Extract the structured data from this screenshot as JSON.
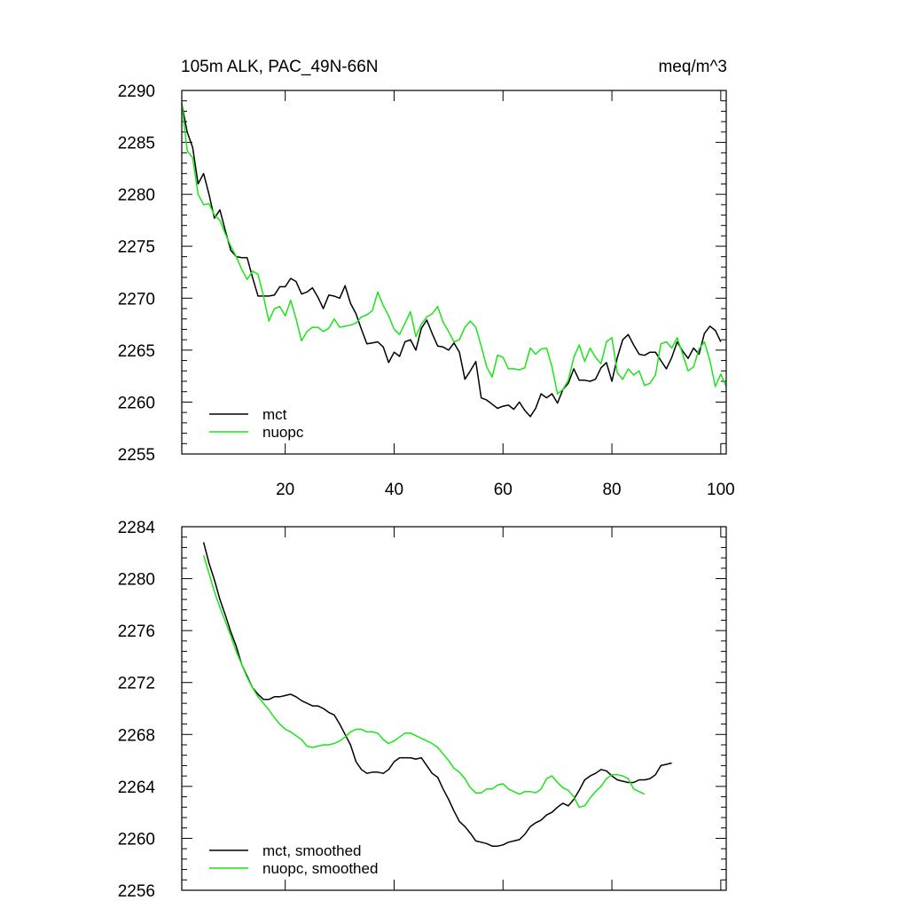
{
  "chart_data": [
    {
      "type": "line",
      "title_left": "105m ALK, PAC_49N-66N",
      "title_right": "meq/m^3",
      "xlabel": "",
      "ylabel": "",
      "xlim": [
        1,
        101
      ],
      "ylim": [
        2255,
        2290
      ],
      "x_ticks": [
        20,
        40,
        60,
        80,
        100
      ],
      "y_ticks": [
        2255,
        2260,
        2265,
        2270,
        2275,
        2280,
        2285,
        2290
      ],
      "legend": "bottom-left",
      "series": [
        {
          "name": "mct",
          "color": "#000000",
          "x_start": 1,
          "values": [
            2288.7,
            2286.0,
            2284.5,
            2281.0,
            2282.0,
            2280.0,
            2277.7,
            2278.5,
            2276.5,
            2274.6,
            2274.0,
            2273.9,
            2273.9,
            2272.0,
            2270.2,
            2270.2,
            2270.2,
            2270.3,
            2271.1,
            2271.1,
            2271.9,
            2271.6,
            2270.4,
            2270.6,
            2271.0,
            2270.1,
            2269.0,
            2270.3,
            2270.2,
            2270.0,
            2271.2,
            2269.5,
            2268.5,
            2267.0,
            2265.6,
            2265.7,
            2265.8,
            2265.3,
            2263.8,
            2264.8,
            2264.4,
            2265.8,
            2266.0,
            2265.0,
            2267.1,
            2267.9,
            2266.6,
            2265.4,
            2265.3,
            2265.0,
            2265.7,
            2264.8,
            2262.2,
            2263.0,
            2263.9,
            2260.4,
            2260.2,
            2259.8,
            2259.4,
            2259.6,
            2259.7,
            2259.3,
            2260.0,
            2259.2,
            2258.6,
            2259.4,
            2260.8,
            2260.4,
            2260.8,
            2259.9,
            2261.2,
            2261.8,
            2263.2,
            2262.1,
            2262.1,
            2262.0,
            2262.2,
            2263.3,
            2263.8,
            2262.0,
            2264.3,
            2266.0,
            2266.5,
            2265.5,
            2264.6,
            2264.5,
            2264.8,
            2264.8,
            2264.0,
            2263.2,
            2264.3,
            2265.8,
            2264.9,
            2264.2,
            2265.2,
            2264.6,
            2266.6,
            2267.3,
            2266.9,
            2265.8
          ]
        },
        {
          "name": "nuopc",
          "color": "#19e619",
          "x_start": 1,
          "values": [
            2288.8,
            2284.2,
            2283.5,
            2280.0,
            2279.0,
            2279.1,
            2278.0,
            2277.5,
            2276.2,
            2275.0,
            2274.0,
            2272.8,
            2271.8,
            2272.6,
            2272.3,
            2270.2,
            2267.8,
            2269.0,
            2269.2,
            2268.3,
            2269.8,
            2268.0,
            2265.9,
            2266.8,
            2267.2,
            2267.2,
            2266.8,
            2267.1,
            2268.0,
            2267.2,
            2267.3,
            2267.4,
            2267.6,
            2268.2,
            2268.4,
            2268.8,
            2270.6,
            2269.3,
            2268.3,
            2267.0,
            2266.5,
            2267.6,
            2268.7,
            2266.3,
            2267.5,
            2268.2,
            2268.5,
            2269.2,
            2267.7,
            2266.8,
            2265.8,
            2266.0,
            2267.2,
            2267.8,
            2267.2,
            2265.4,
            2263.4,
            2262.4,
            2264.5,
            2264.3,
            2263.2,
            2263.2,
            2263.1,
            2263.3,
            2265.2,
            2264.6,
            2265.1,
            2265.2,
            2263.4,
            2260.8,
            2261.2,
            2262.1,
            2264.3,
            2265.5,
            2263.9,
            2265.2,
            2264.3,
            2263.7,
            2265.8,
            2266.2,
            2262.8,
            2262.2,
            2263.2,
            2262.6,
            2263.0,
            2261.6,
            2261.8,
            2262.6,
            2265.6,
            2265.8,
            2265.2,
            2266.2,
            2264.6,
            2263.0,
            2263.4,
            2265.1,
            2265.8,
            2264.0,
            2261.5,
            2262.7,
            2261.5
          ]
        }
      ]
    },
    {
      "type": "line",
      "title_left": "",
      "title_right": "",
      "xlabel": "",
      "ylabel": "",
      "xlim": [
        1,
        101
      ],
      "ylim": [
        2256,
        2284
      ],
      "x_ticks": [
        20,
        40,
        60,
        80,
        100
      ],
      "y_ticks": [
        2256,
        2260,
        2264,
        2268,
        2272,
        2276,
        2280,
        2284
      ],
      "show_x_tick_labels": false,
      "legend": "bottom-left",
      "series": [
        {
          "name": "mct, smoothed",
          "color": "#000000",
          "x_start": 5,
          "values": [
            2282.8,
            2281.2,
            2279.9,
            2278.4,
            2277.2,
            2275.9,
            2274.8,
            2273.4,
            2272.5,
            2271.6,
            2271.1,
            2270.7,
            2270.7,
            2270.9,
            2270.9,
            2271.0,
            2271.1,
            2270.9,
            2270.6,
            2270.4,
            2270.2,
            2270.2,
            2270.0,
            2269.7,
            2269.5,
            2268.8,
            2268.0,
            2267.2,
            2265.9,
            2265.3,
            2265.0,
            2265.1,
            2265.1,
            2265.0,
            2265.3,
            2265.9,
            2266.2,
            2266.2,
            2266.2,
            2266.1,
            2266.2,
            2265.6,
            2265.0,
            2264.7,
            2263.8,
            2263.0,
            2262.1,
            2261.3,
            2260.9,
            2260.4,
            2259.8,
            2259.7,
            2259.6,
            2259.4,
            2259.4,
            2259.5,
            2259.7,
            2259.8,
            2259.9,
            2260.3,
            2260.9,
            2261.2,
            2261.4,
            2261.8,
            2262.0,
            2262.4,
            2262.7,
            2262.5,
            2263.0,
            2263.7,
            2264.5,
            2264.8,
            2265.0,
            2265.3,
            2265.2,
            2264.8,
            2264.5,
            2264.4,
            2264.3,
            2264.3,
            2264.5,
            2264.5,
            2264.6,
            2264.9,
            2265.6,
            2265.7,
            2265.8
          ]
        },
        {
          "name": "nuopc, smoothed",
          "color": "#19e619",
          "x_start": 5,
          "values": [
            2281.8,
            2280.4,
            2279.0,
            2277.8,
            2276.7,
            2275.6,
            2274.4,
            2273.4,
            2272.4,
            2271.6,
            2270.9,
            2270.4,
            2269.9,
            2269.3,
            2268.8,
            2268.4,
            2268.2,
            2267.9,
            2267.6,
            2267.1,
            2267.0,
            2267.1,
            2267.2,
            2267.2,
            2267.3,
            2267.5,
            2267.8,
            2268.2,
            2268.4,
            2268.4,
            2268.2,
            2268.2,
            2268.1,
            2267.6,
            2267.3,
            2267.5,
            2267.8,
            2268.1,
            2268.1,
            2267.9,
            2267.7,
            2267.5,
            2267.3,
            2267.0,
            2266.5,
            2266.0,
            2265.4,
            2265.1,
            2264.6,
            2263.9,
            2263.5,
            2263.5,
            2263.8,
            2263.8,
            2264.1,
            2264.2,
            2263.8,
            2263.6,
            2263.4,
            2263.6,
            2263.6,
            2263.5,
            2263.8,
            2264.6,
            2264.8,
            2264.3,
            2263.9,
            2263.7,
            2263.2,
            2262.4,
            2262.5,
            2263.1,
            2263.6,
            2264.0,
            2264.6,
            2264.9,
            2264.9,
            2264.8,
            2264.6,
            2263.8,
            2263.6,
            2263.4
          ]
        }
      ]
    }
  ]
}
